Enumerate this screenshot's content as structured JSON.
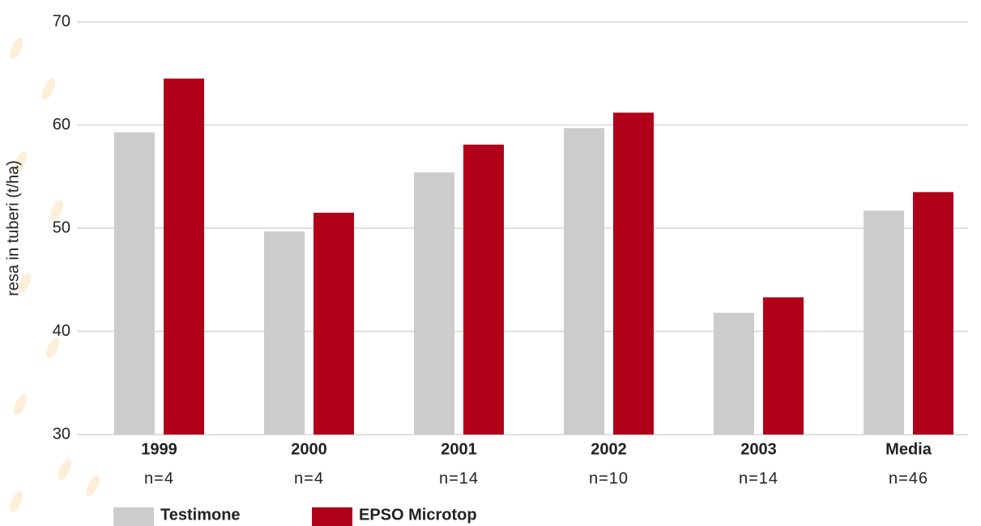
{
  "chart_data": {
    "type": "bar",
    "y_label": "resa in tuberi (t/ha)",
    "categories": [
      "1999",
      "2000",
      "2001",
      "2002",
      "2003",
      "Media"
    ],
    "category_notes": [
      "n=4",
      "n=4",
      "n=14",
      "n=10",
      "n=14",
      "n=46"
    ],
    "series": [
      {
        "name": "Testimone",
        "color": "#cccccc",
        "values": [
          59.3,
          49.7,
          55.4,
          59.7,
          41.8,
          51.7
        ]
      },
      {
        "name": "EPSO Microtop",
        "color": "#b0001a",
        "values": [
          64.5,
          51.5,
          58.1,
          61.2,
          43.3,
          53.5
        ]
      }
    ],
    "ylim": [
      30,
      70
    ],
    "yticks": [
      30,
      40,
      50,
      60,
      70
    ],
    "grid": true
  }
}
